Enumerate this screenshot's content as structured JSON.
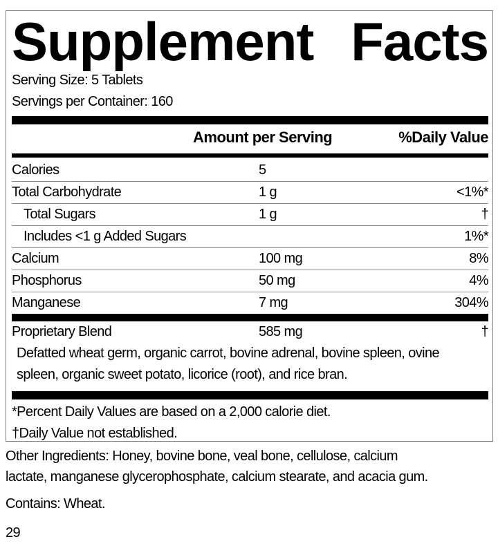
{
  "title_words": [
    "Supplement",
    "Facts"
  ],
  "serving_size": "Serving Size: 5 Tablets",
  "servings_per_container": "Servings per Container: 160",
  "header": {
    "amount": "Amount per Serving",
    "dv": "%Daily Value"
  },
  "rows": [
    {
      "name": "Calories",
      "amount": "5",
      "dv": "",
      "indent": false
    },
    {
      "name": "Total Carbohydrate",
      "amount": "1 g",
      "dv": "<1%*",
      "indent": false
    },
    {
      "name": "Total Sugars",
      "amount": "1 g",
      "dv": "†",
      "indent": true
    },
    {
      "name": "Includes <1 g Added Sugars",
      "amount": "",
      "dv": "1%*",
      "indent": true
    },
    {
      "name": "Calcium",
      "amount": "100 mg",
      "dv": "8%",
      "indent": false
    },
    {
      "name": "Phosphorus",
      "amount": "50 mg",
      "dv": "4%",
      "indent": false
    },
    {
      "name": "Manganese",
      "amount": "7 mg",
      "dv": "304%",
      "indent": false
    }
  ],
  "blend": {
    "name": "Proprietary Blend",
    "amount": "585 mg",
    "dv": "†",
    "ingredients_line1": "Defatted wheat germ, organic carrot, bovine adrenal, bovine spleen, ovine",
    "ingredients_line2": "spleen, organic sweet potato, licorice (root), and rice bran."
  },
  "footnotes": [
    "*Percent Daily Values are based on a 2,000 calorie diet.",
    "†Daily Value not established."
  ],
  "other_ingredients": [
    "Other Ingredients: Honey, bovine bone, veal bone, cellulose, calcium",
    "lactate, manganese glycerophosphate, calcium stearate, and acacia gum."
  ],
  "contains": "Contains: Wheat.",
  "page_number": "29"
}
